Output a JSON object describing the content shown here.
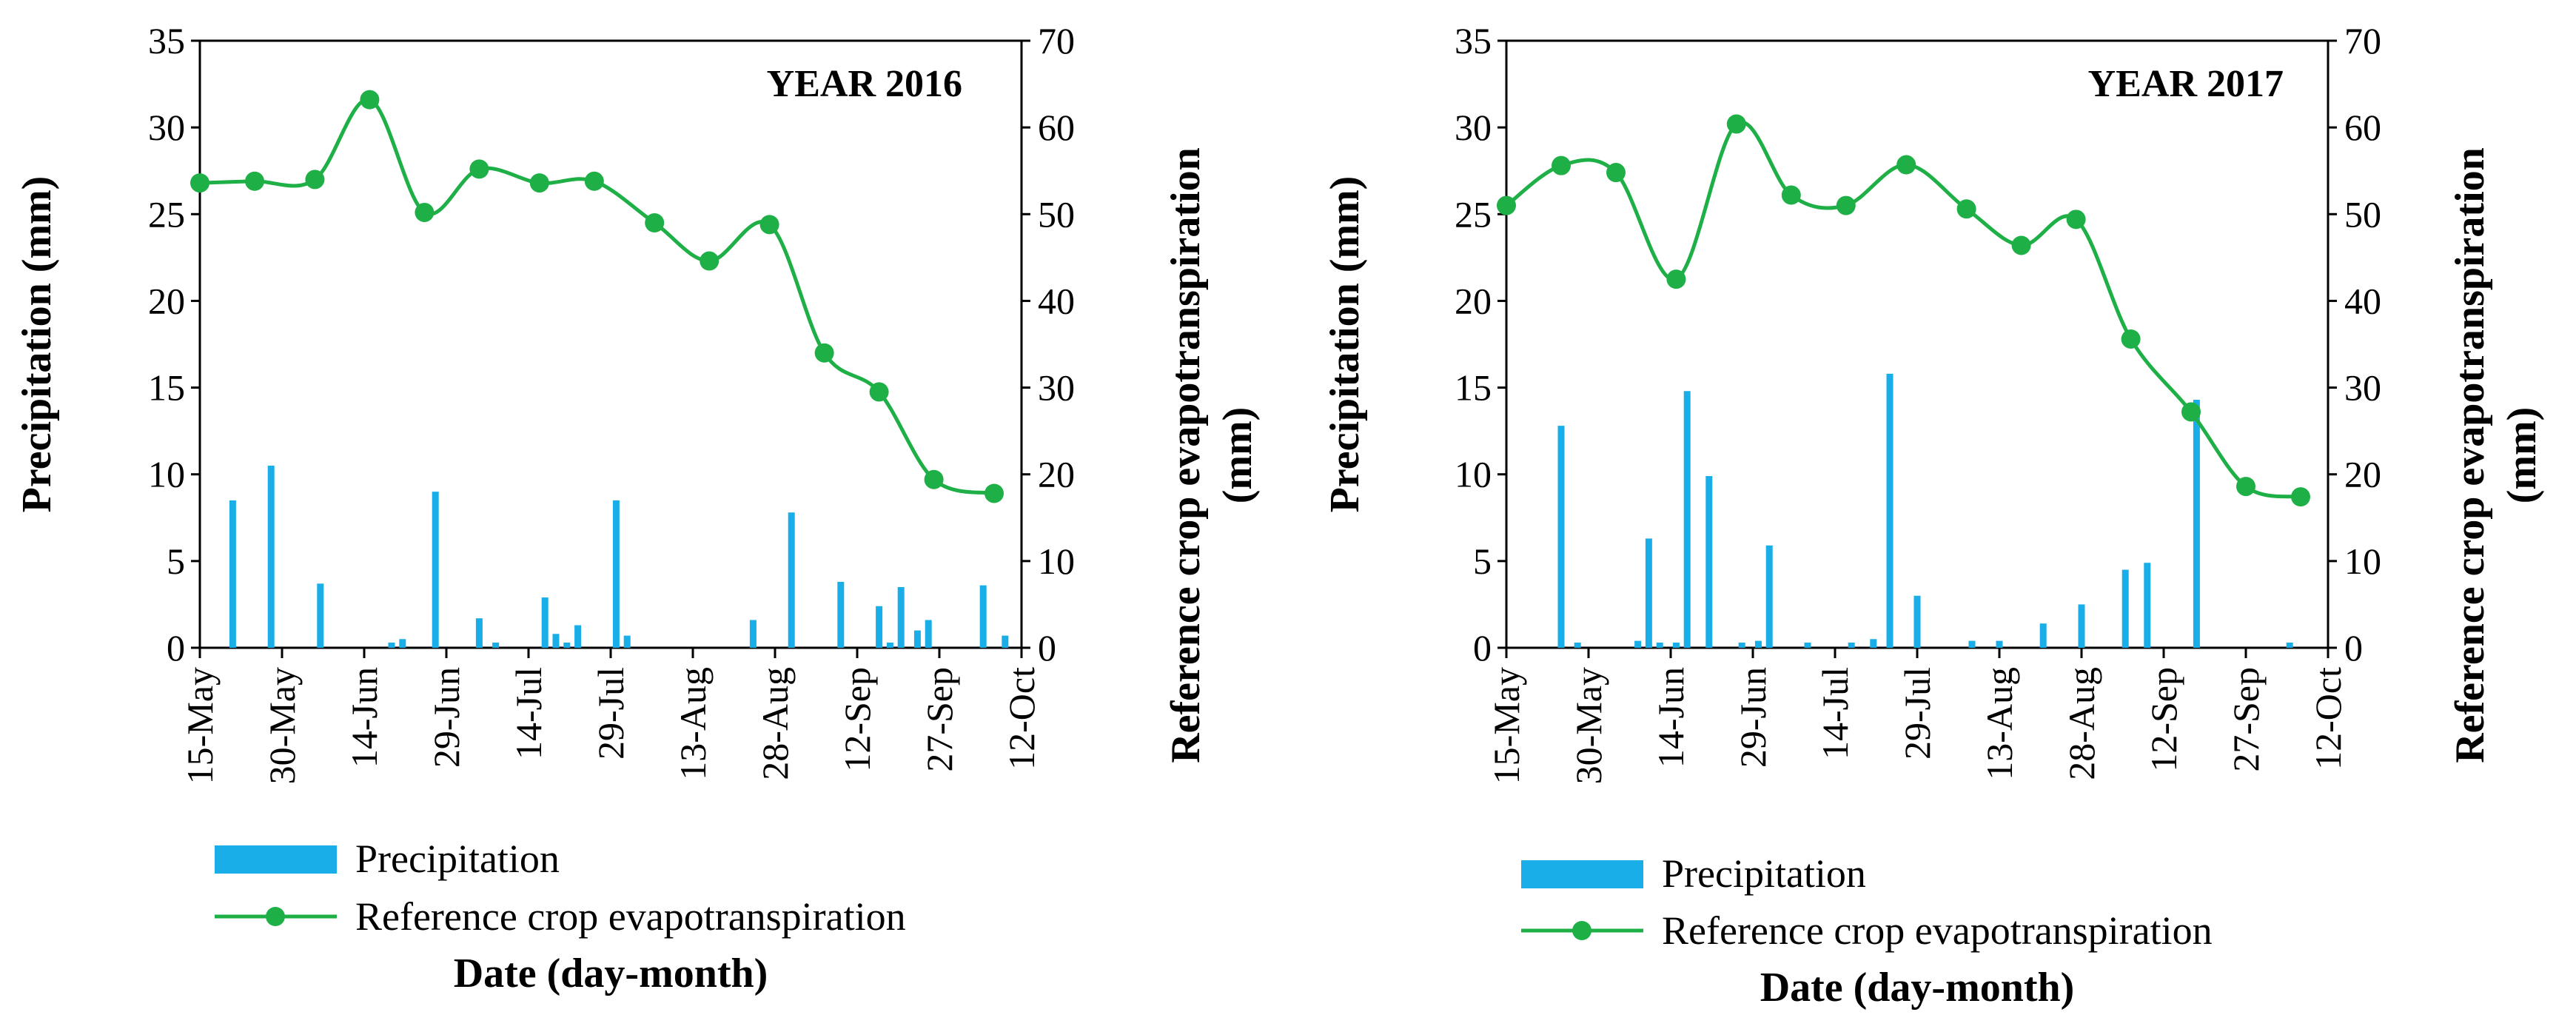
{
  "colors": {
    "precip": "#1aaee8",
    "et": "#1eb046",
    "axis": "#000000"
  },
  "chart_data": [
    {
      "type": "bar+line",
      "title": "YEAR 2016",
      "xlabel": "Date (day-month)",
      "ylabel_left": "Precipitation (mm)",
      "ylabel_right": "Reference crop evapotranspiration (mm)",
      "ylabel_right_lines": [
        "Reference crop evapotranspiration",
        "(mm)"
      ],
      "ylim_left": [
        0,
        35
      ],
      "ylim_right": [
        0,
        70
      ],
      "yticks_left": [
        "0",
        "5",
        "10",
        "15",
        "20",
        "25",
        "30",
        "35"
      ],
      "yticks_right": [
        "0",
        "10",
        "20",
        "30",
        "40",
        "50",
        "60",
        "70"
      ],
      "x_start_day": 0,
      "x_end_day": 150,
      "xticks": [
        {
          "label": "15-May",
          "day": 0
        },
        {
          "label": "30-May",
          "day": 15
        },
        {
          "label": "14-Jun",
          "day": 30
        },
        {
          "label": "29-Jun",
          "day": 45
        },
        {
          "label": "14-Jul",
          "day": 60
        },
        {
          "label": "29-Jul",
          "day": 75
        },
        {
          "label": "13-Aug",
          "day": 90
        },
        {
          "label": "28-Aug",
          "day": 105
        },
        {
          "label": "12-Sep",
          "day": 120
        },
        {
          "label": "27-Sep",
          "day": 135
        },
        {
          "label": "12-Oct",
          "day": 150
        }
      ],
      "legend": [
        "Precipitation",
        "Reference crop evapotranspiration"
      ],
      "series": [
        {
          "name": "Precipitation",
          "axis": "left",
          "kind": "bar",
          "points": [
            {
              "day": 6,
              "value": 8.5
            },
            {
              "day": 13,
              "value": 10.5
            },
            {
              "day": 22,
              "value": 3.7
            },
            {
              "day": 35,
              "value": 0.3
            },
            {
              "day": 37,
              "value": 0.5
            },
            {
              "day": 43,
              "value": 9.0
            },
            {
              "day": 51,
              "value": 1.7
            },
            {
              "day": 54,
              "value": 0.3
            },
            {
              "day": 63,
              "value": 2.9
            },
            {
              "day": 65,
              "value": 0.8
            },
            {
              "day": 67,
              "value": 0.3
            },
            {
              "day": 69,
              "value": 1.3
            },
            {
              "day": 76,
              "value": 8.5
            },
            {
              "day": 78,
              "value": 0.7
            },
            {
              "day": 101,
              "value": 1.6
            },
            {
              "day": 108,
              "value": 7.8
            },
            {
              "day": 117,
              "value": 3.8
            },
            {
              "day": 124,
              "value": 2.4
            },
            {
              "day": 126,
              "value": 0.3
            },
            {
              "day": 128,
              "value": 3.5
            },
            {
              "day": 131,
              "value": 1.0
            },
            {
              "day": 133,
              "value": 1.6
            },
            {
              "day": 143,
              "value": 3.6
            },
            {
              "day": 147,
              "value": 0.7
            }
          ]
        },
        {
          "name": "Reference crop evapotranspiration",
          "axis": "right",
          "kind": "line",
          "points": [
            {
              "day": 0,
              "value": 53.6
            },
            {
              "day": 10,
              "value": 53.8
            },
            {
              "day": 21,
              "value": 54.0
            },
            {
              "day": 31,
              "value": 63.2
            },
            {
              "day": 41,
              "value": 50.2
            },
            {
              "day": 51,
              "value": 55.2
            },
            {
              "day": 62,
              "value": 53.6
            },
            {
              "day": 72,
              "value": 53.8
            },
            {
              "day": 83,
              "value": 49.0
            },
            {
              "day": 93,
              "value": 44.6
            },
            {
              "day": 104,
              "value": 48.8
            },
            {
              "day": 114,
              "value": 34.0
            },
            {
              "day": 124,
              "value": 29.5
            },
            {
              "day": 134,
              "value": 19.4
            },
            {
              "day": 145,
              "value": 17.8
            }
          ]
        }
      ]
    },
    {
      "type": "bar+line",
      "title": "YEAR 2017",
      "xlabel": "Date (day-month)",
      "ylabel_left": "Precipitation (mm)",
      "ylabel_right": "Reference crop evapotranspiration (mm)",
      "ylabel_right_lines": [
        "Reference crop evapotranspiration",
        "(mm)"
      ],
      "ylim_left": [
        0,
        35
      ],
      "ylim_right": [
        0,
        70
      ],
      "yticks_left": [
        "0",
        "5",
        "10",
        "15",
        "20",
        "25",
        "30",
        "35"
      ],
      "yticks_right": [
        "0",
        "10",
        "20",
        "30",
        "40",
        "50",
        "60",
        "70"
      ],
      "x_start_day": 0,
      "x_end_day": 150,
      "xticks": [
        {
          "label": "15-May",
          "day": 0
        },
        {
          "label": "30-May",
          "day": 15
        },
        {
          "label": "14-Jun",
          "day": 30
        },
        {
          "label": "29-Jun",
          "day": 45
        },
        {
          "label": "14-Jul",
          "day": 60
        },
        {
          "label": "29-Jul",
          "day": 75
        },
        {
          "label": "13-Aug",
          "day": 90
        },
        {
          "label": "28-Aug",
          "day": 105
        },
        {
          "label": "12-Sep",
          "day": 120
        },
        {
          "label": "27-Sep",
          "day": 135
        },
        {
          "label": "12-Oct",
          "day": 150
        }
      ],
      "legend": [
        "Precipitation",
        "Reference crop evapotranspiration"
      ],
      "series": [
        {
          "name": "Precipitation",
          "axis": "left",
          "kind": "bar",
          "points": [
            {
              "day": 10,
              "value": 12.8
            },
            {
              "day": 13,
              "value": 0.3
            },
            {
              "day": 24,
              "value": 0.4
            },
            {
              "day": 26,
              "value": 6.3
            },
            {
              "day": 28,
              "value": 0.3
            },
            {
              "day": 31,
              "value": 0.3
            },
            {
              "day": 33,
              "value": 14.8
            },
            {
              "day": 37,
              "value": 9.9
            },
            {
              "day": 43,
              "value": 0.3
            },
            {
              "day": 46,
              "value": 0.4
            },
            {
              "day": 48,
              "value": 5.9
            },
            {
              "day": 55,
              "value": 0.3
            },
            {
              "day": 63,
              "value": 0.3
            },
            {
              "day": 67,
              "value": 0.5
            },
            {
              "day": 70,
              "value": 15.8
            },
            {
              "day": 75,
              "value": 3.0
            },
            {
              "day": 85,
              "value": 0.4
            },
            {
              "day": 90,
              "value": 0.4
            },
            {
              "day": 98,
              "value": 1.4
            },
            {
              "day": 105,
              "value": 2.5
            },
            {
              "day": 113,
              "value": 4.5
            },
            {
              "day": 117,
              "value": 4.9
            },
            {
              "day": 126,
              "value": 14.3
            },
            {
              "day": 143,
              "value": 0.3
            }
          ]
        },
        {
          "name": "Reference crop evapotranspiration",
          "axis": "right",
          "kind": "line",
          "points": [
            {
              "day": 0,
              "value": 51.0
            },
            {
              "day": 10,
              "value": 55.6
            },
            {
              "day": 20,
              "value": 54.8
            },
            {
              "day": 31,
              "value": 42.5
            },
            {
              "day": 42,
              "value": 60.4
            },
            {
              "day": 52,
              "value": 52.2
            },
            {
              "day": 62,
              "value": 51.0
            },
            {
              "day": 73,
              "value": 55.7
            },
            {
              "day": 84,
              "value": 50.6
            },
            {
              "day": 94,
              "value": 46.4
            },
            {
              "day": 104,
              "value": 49.4
            },
            {
              "day": 114,
              "value": 35.6
            },
            {
              "day": 125,
              "value": 27.2
            },
            {
              "day": 135,
              "value": 18.6
            },
            {
              "day": 145,
              "value": 17.4
            }
          ]
        }
      ]
    }
  ]
}
